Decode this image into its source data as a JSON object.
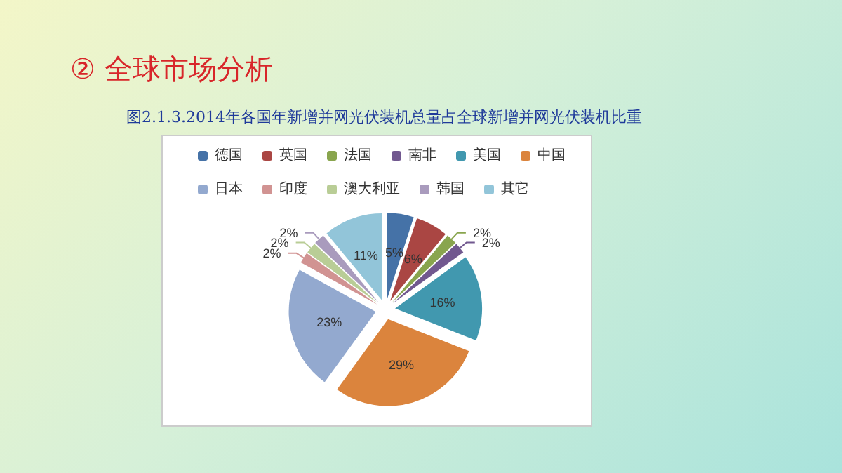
{
  "chart_data": {
    "type": "pie",
    "title": "② 全球市场分析",
    "subtitle": "图2.1.3.2014年各国年新增并网光伏装机总量占全球新增并网光伏装机比重",
    "categories": [
      "德国",
      "英国",
      "法国",
      "南非",
      "美国",
      "中国",
      "日本",
      "印度",
      "澳大利亚",
      "韩国",
      "其它"
    ],
    "values": [
      5,
      6,
      2,
      2,
      16,
      29,
      23,
      2,
      2,
      2,
      11
    ],
    "colors": [
      "#4572a7",
      "#aa4643",
      "#89a54e",
      "#71588f",
      "#4198af",
      "#db843d",
      "#93a9cf",
      "#d19392",
      "#b9cd96",
      "#a99bbd",
      "#92c5d9"
    ],
    "value_labels": [
      "5%",
      "6%",
      "2%",
      "2%",
      "16%",
      "29%",
      "23%",
      "2%",
      "2%",
      "2%",
      "11%"
    ],
    "legend": "top"
  }
}
